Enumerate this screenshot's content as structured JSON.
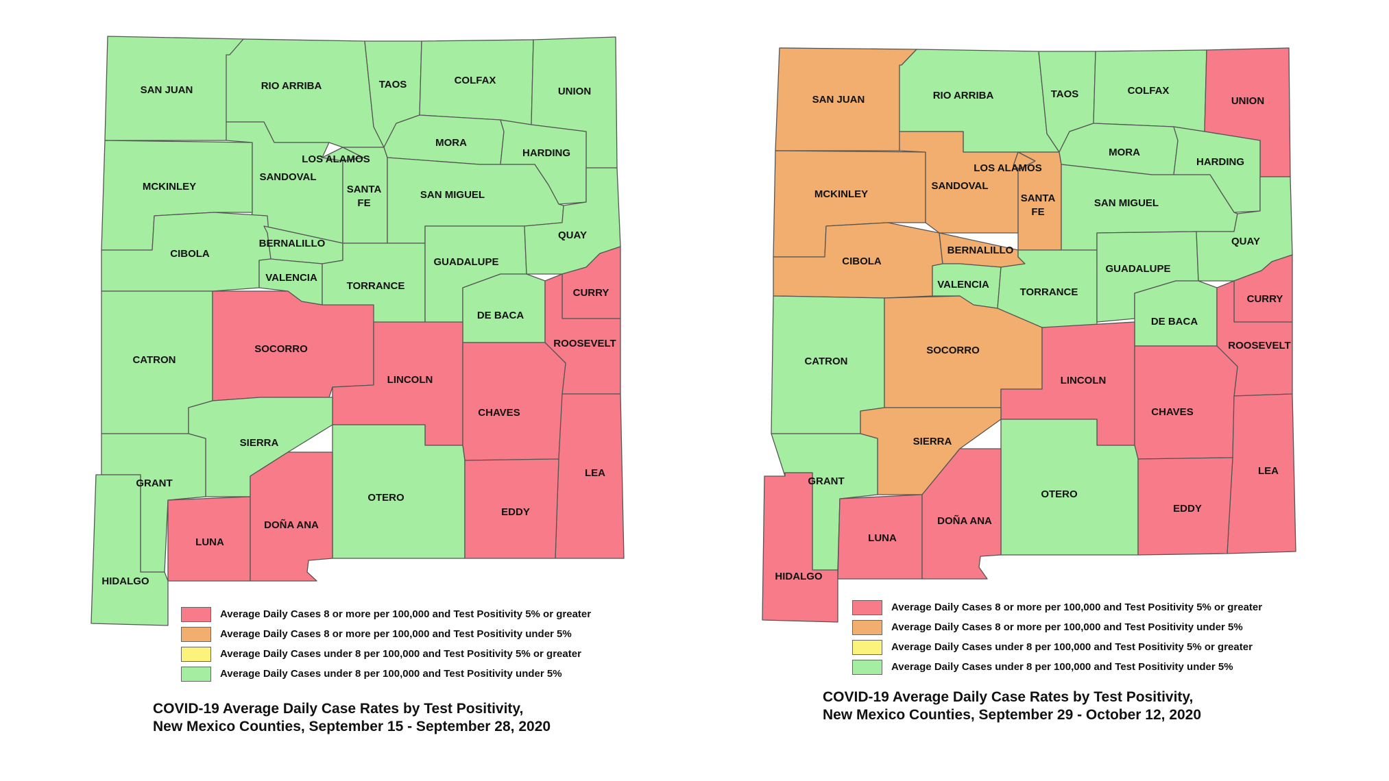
{
  "colors": {
    "high_cases_high_positivity": "#f87b89",
    "high_cases_low_positivity": "#f1ae6e",
    "low_cases_high_positivity": "#fbf37c",
    "low_cases_low_positivity": "#a5eda1"
  },
  "legend": [
    {
      "key": "high_cases_high_positivity",
      "label": "Average Daily Cases 8 or more per 100,000 and Test Positivity 5% or greater"
    },
    {
      "key": "high_cases_low_positivity",
      "label": "Average Daily Cases 8 or more per 100,000 and Test Positivity under 5%"
    },
    {
      "key": "low_cases_high_positivity",
      "label": "Average Daily Cases under 8 per 100,000 and Test Positivity 5% or greater"
    },
    {
      "key": "low_cases_low_positivity",
      "label": "Average Daily Cases under 8 per 100,000 and Test Positivity under 5%"
    }
  ],
  "counties": {
    "san_juan": "SAN JUAN",
    "rio_arriba": "RIO ARRIBA",
    "taos": "TAOS",
    "colfax": "COLFAX",
    "union": "UNION",
    "mckinley": "MCKINLEY",
    "sandoval": "SANDOVAL",
    "los_alamos": "LOS ALAMOS",
    "santa_fe_1": "SANTA",
    "santa_fe_2": "FE",
    "mora": "MORA",
    "harding": "HARDING",
    "san_miguel": "SAN MIGUEL",
    "cibola": "CIBOLA",
    "bernalillo": "BERNALILLO",
    "valencia": "VALENCIA",
    "torrance": "TORRANCE",
    "guadalupe": "GUADALUPE",
    "quay": "QUAY",
    "curry": "CURRY",
    "de_baca": "DE BACA",
    "roosevelt": "ROOSEVELT",
    "catron": "CATRON",
    "socorro": "SOCORRO",
    "lincoln": "LINCOLN",
    "chaves": "CHAVES",
    "sierra": "SIERRA",
    "grant": "GRANT",
    "otero": "OTERO",
    "lea": "LEA",
    "eddy": "EDDY",
    "luna": "LUNA",
    "dona_ana": "DOÑA ANA",
    "hidalgo": "HIDALGO"
  },
  "maps": [
    {
      "title_line1": "COVID-19 Average Daily Case Rates by Test Positivity,",
      "title_line2": "New Mexico Counties, September 15 - September 28, 2020",
      "status": {
        "san_juan": "low_cases_low_positivity",
        "rio_arriba": "low_cases_low_positivity",
        "taos": "low_cases_low_positivity",
        "colfax": "low_cases_low_positivity",
        "union": "low_cases_low_positivity",
        "mckinley": "low_cases_low_positivity",
        "sandoval": "low_cases_low_positivity",
        "los_alamos": "low_cases_low_positivity",
        "santa_fe": "low_cases_low_positivity",
        "mora": "low_cases_low_positivity",
        "harding": "low_cases_low_positivity",
        "san_miguel": "low_cases_low_positivity",
        "cibola": "low_cases_low_positivity",
        "bernalillo": "low_cases_low_positivity",
        "valencia": "low_cases_low_positivity",
        "torrance": "low_cases_low_positivity",
        "guadalupe": "low_cases_low_positivity",
        "quay": "low_cases_low_positivity",
        "curry": "high_cases_high_positivity",
        "de_baca": "low_cases_low_positivity",
        "roosevelt": "high_cases_high_positivity",
        "catron": "low_cases_low_positivity",
        "socorro": "high_cases_high_positivity",
        "lincoln": "high_cases_high_positivity",
        "chaves": "high_cases_high_positivity",
        "sierra": "low_cases_low_positivity",
        "grant": "low_cases_low_positivity",
        "otero": "low_cases_low_positivity",
        "lea": "high_cases_high_positivity",
        "eddy": "high_cases_high_positivity",
        "luna": "high_cases_high_positivity",
        "dona_ana": "high_cases_high_positivity",
        "hidalgo": "low_cases_low_positivity"
      }
    },
    {
      "title_line1": "COVID-19 Average Daily Case Rates by Test Positivity,",
      "title_line2": "New Mexico Counties, September 29 - October 12, 2020",
      "status": {
        "san_juan": "high_cases_low_positivity",
        "rio_arriba": "low_cases_low_positivity",
        "taos": "low_cases_low_positivity",
        "colfax": "low_cases_low_positivity",
        "union": "high_cases_high_positivity",
        "mckinley": "high_cases_low_positivity",
        "sandoval": "high_cases_low_positivity",
        "los_alamos": "high_cases_low_positivity",
        "santa_fe": "high_cases_low_positivity",
        "mora": "low_cases_low_positivity",
        "harding": "low_cases_low_positivity",
        "san_miguel": "low_cases_low_positivity",
        "cibola": "high_cases_low_positivity",
        "bernalillo": "high_cases_low_positivity",
        "valencia": "low_cases_low_positivity",
        "torrance": "low_cases_low_positivity",
        "guadalupe": "low_cases_low_positivity",
        "quay": "low_cases_low_positivity",
        "curry": "high_cases_high_positivity",
        "de_baca": "low_cases_low_positivity",
        "roosevelt": "high_cases_high_positivity",
        "catron": "low_cases_low_positivity",
        "socorro": "high_cases_low_positivity",
        "lincoln": "high_cases_high_positivity",
        "chaves": "high_cases_high_positivity",
        "sierra": "high_cases_low_positivity",
        "grant": "low_cases_low_positivity",
        "otero": "low_cases_low_positivity",
        "lea": "high_cases_high_positivity",
        "eddy": "high_cases_high_positivity",
        "luna": "high_cases_high_positivity",
        "dona_ana": "high_cases_high_positivity",
        "hidalgo": "high_cases_high_positivity"
      }
    }
  ]
}
